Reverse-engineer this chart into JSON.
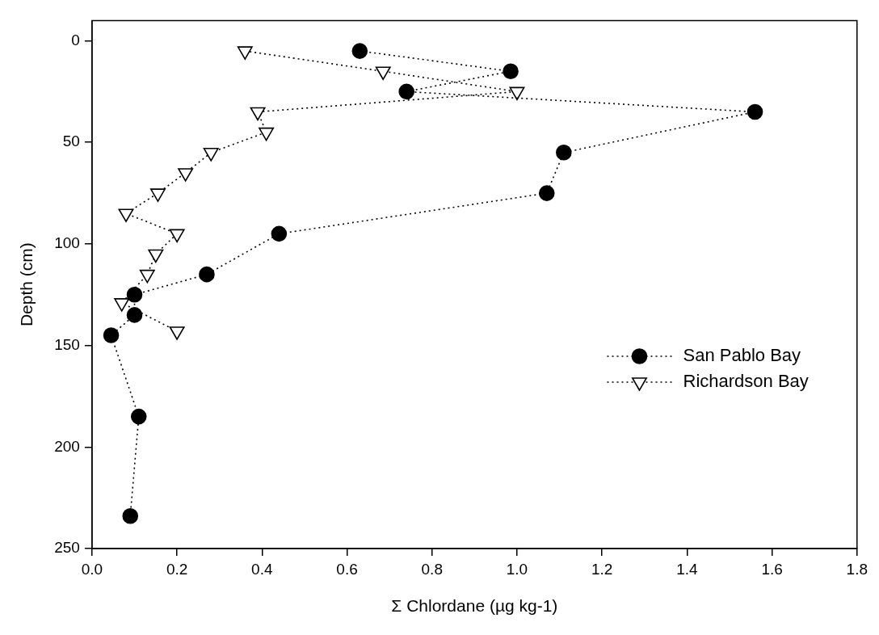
{
  "chart_data": {
    "type": "line",
    "xlabel": "Σ Chlordane (µg kg-1)",
    "ylabel": "Depth (cm)",
    "xlim": [
      0,
      1.8
    ],
    "xticks": [
      {
        "value": 0,
        "label": "0.0"
      },
      {
        "value": 0.2,
        "label": "0.2"
      },
      {
        "value": 0.4,
        "label": "0.4"
      },
      {
        "value": 0.6,
        "label": "0.6"
      },
      {
        "value": 0.8,
        "label": "0.8"
      },
      {
        "value": 1,
        "label": "1.0"
      },
      {
        "value": 1.2,
        "label": "1.2"
      },
      {
        "value": 1.4,
        "label": "1.4"
      },
      {
        "value": 1.6,
        "label": "1.6"
      },
      {
        "value": 1.8,
        "label": "1.8"
      }
    ],
    "ylim": [
      250,
      -10
    ],
    "yticks": [
      0,
      50,
      100,
      150,
      200,
      250
    ],
    "grid": false,
    "legend": "bottom right",
    "line_style": "dotted",
    "series": [
      {
        "name": "San Pablo Bay",
        "color": "#000000",
        "marker": "circle",
        "x": [
          0.63,
          0.985,
          0.74,
          1.56,
          1.11,
          1.07,
          0.44,
          0.27,
          0.1,
          0.1,
          0.045,
          0.11,
          0.09
        ],
        "values": [
          5,
          15,
          25,
          35,
          55,
          75,
          95,
          115,
          125,
          135,
          145,
          185,
          234
        ]
      },
      {
        "name": "Richardson Bay",
        "color": "#000000",
        "marker": "triangle",
        "x": [
          0.36,
          0.685,
          1.0,
          0.39,
          0.41,
          0.28,
          0.22,
          0.155,
          0.08,
          0.2,
          0.15,
          0.13,
          0.07,
          0.2
        ],
        "values": [
          5,
          15,
          25,
          35,
          45,
          55,
          65,
          75,
          85,
          95,
          105,
          115,
          129,
          143
        ]
      }
    ]
  }
}
